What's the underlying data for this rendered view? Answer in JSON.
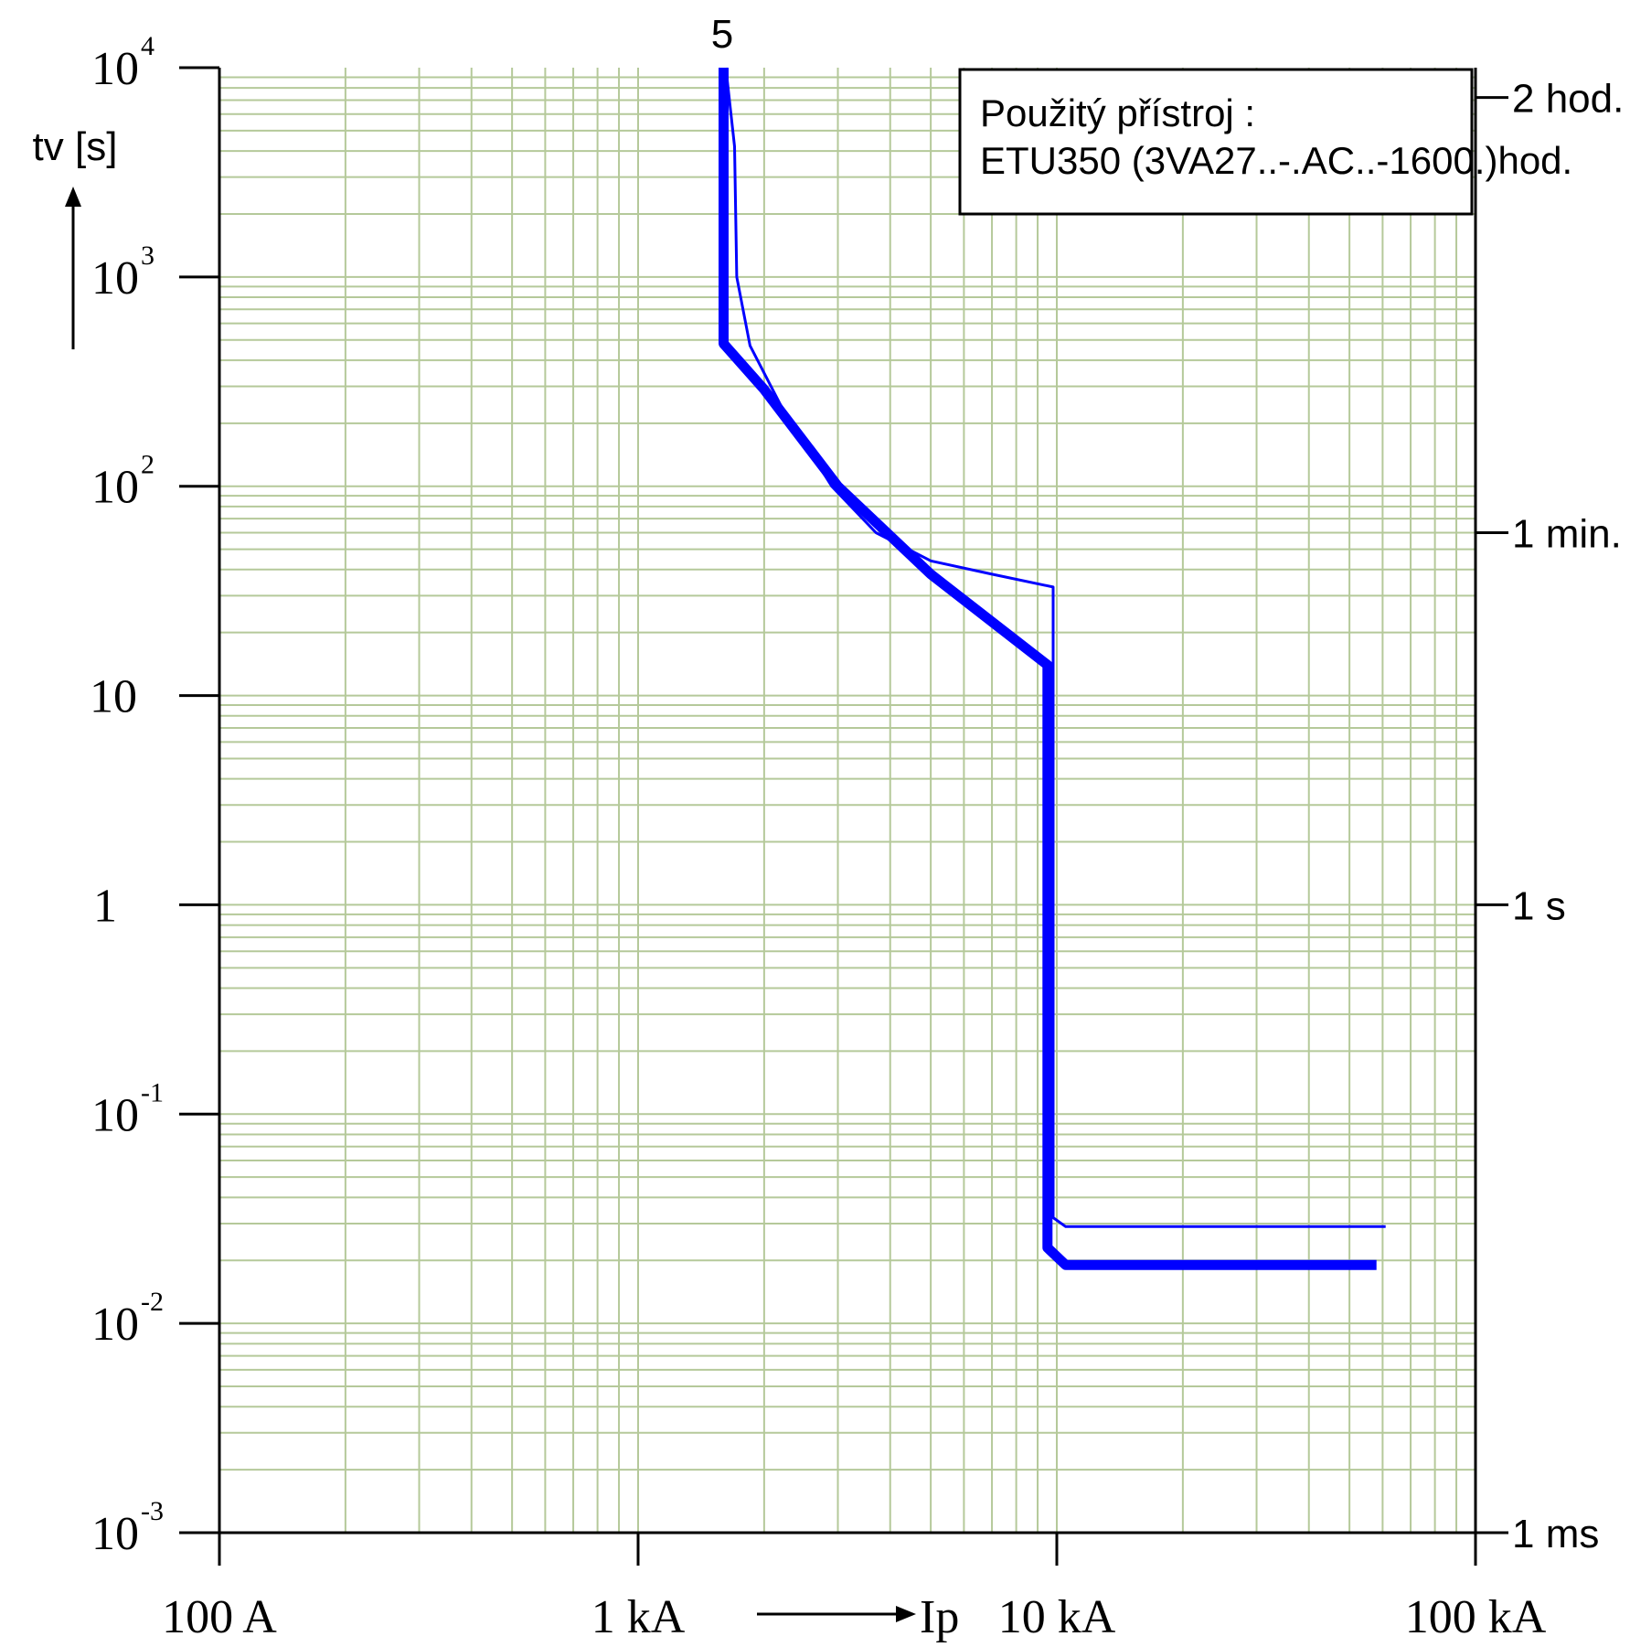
{
  "chart_data": {
    "type": "line",
    "x_scale": "log",
    "y_scale": "log",
    "xlim": [
      100,
      100000
    ],
    "ylim": [
      0.001,
      10000
    ],
    "grid": true,
    "grid_color": "#b5c99a",
    "series_color": "#0000ff",
    "axis_color": "#000000",
    "xlabel": "Ip",
    "ylabel": "tv [s]",
    "x_tick_labels": [
      {
        "value": 100,
        "label": "100 A"
      },
      {
        "value": 1000,
        "label": "1 kA"
      },
      {
        "value": 10000,
        "label": "10 kA"
      },
      {
        "value": 100000,
        "label": "100 kA"
      }
    ],
    "y_tick_labels": [
      {
        "value": 10000,
        "base": "10",
        "exp": "4"
      },
      {
        "value": 1000,
        "base": "10",
        "exp": "3"
      },
      {
        "value": 100,
        "base": "10",
        "exp": "2"
      },
      {
        "value": 10,
        "base": "10",
        "exp": ""
      },
      {
        "value": 1,
        "base": "1",
        "exp": ""
      },
      {
        "value": 0.1,
        "base": "10",
        "exp": "-1"
      },
      {
        "value": 0.01,
        "base": "10",
        "exp": "-2"
      },
      {
        "value": 0.001,
        "base": "10",
        "exp": "-3"
      }
    ],
    "right_axis_labels": [
      {
        "value": 7200,
        "label": "2 hod."
      },
      {
        "value": 60,
        "label": "1 min."
      },
      {
        "value": 1,
        "label": "1 s"
      },
      {
        "value": 0.001,
        "label": "1 ms"
      }
    ],
    "curve_label": "5",
    "info_box": {
      "line1": "Použitý přístroj :",
      "line2": "ETU350 (3VA27..-.AC..-1600.)hod."
    },
    "series": [
      {
        "role": "min",
        "stroke": "thick",
        "points": [
          [
            1600,
            10000
          ],
          [
            1600,
            480
          ],
          [
            2000,
            290
          ],
          [
            3000,
            100
          ],
          [
            5000,
            38
          ],
          [
            9500,
            14
          ],
          [
            9500,
            0.023
          ],
          [
            10500,
            0.019
          ],
          [
            58000,
            0.019
          ]
        ]
      },
      {
        "role": "max",
        "stroke": "thin",
        "points": [
          [
            1620,
            10000
          ],
          [
            1700,
            4200
          ],
          [
            1720,
            1000
          ],
          [
            1850,
            470
          ],
          [
            2200,
            240
          ],
          [
            2900,
            100
          ],
          [
            3700,
            60
          ],
          [
            5000,
            44
          ],
          [
            7000,
            38
          ],
          [
            9800,
            33
          ],
          [
            9800,
            0.032
          ],
          [
            10500,
            0.029
          ],
          [
            61000,
            0.029
          ]
        ]
      }
    ]
  }
}
